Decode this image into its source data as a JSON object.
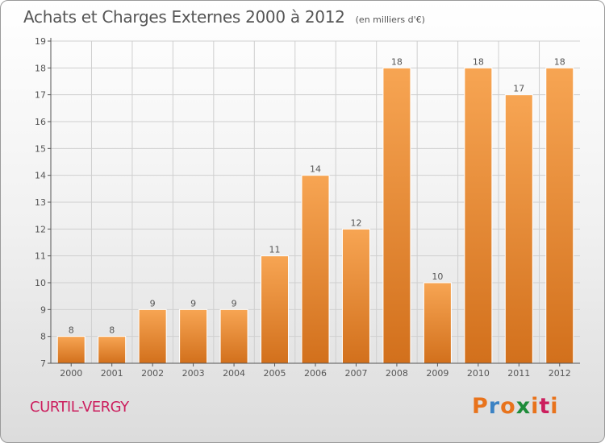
{
  "header": {
    "title": "Achats et Charges Externes 2000 à 2012",
    "unit": "(en milliers d'€)"
  },
  "footer": {
    "commune": "CURTIL-VERGY",
    "logo_text": "Proxiti",
    "logo_colors": [
      "#e8731c",
      "#3b82c4",
      "#e8731c",
      "#1e8c3a",
      "#e8731c",
      "#cc1f5e",
      "#e8731c"
    ]
  },
  "colors": {
    "bar_light": "#f7a553",
    "bar_dark": "#d2701c",
    "grid": "#cfcfcf",
    "axis": "#555555"
  },
  "chart_data": {
    "type": "bar",
    "title": "Achats et Charges Externes 2000 à 2012",
    "subtitle": "(en milliers d'€)",
    "categories": [
      "2000",
      "2001",
      "2002",
      "2003",
      "2004",
      "2005",
      "2006",
      "2007",
      "2008",
      "2009",
      "2010",
      "2011",
      "2012"
    ],
    "values": [
      8,
      8,
      9,
      9,
      9,
      11,
      14,
      12,
      18,
      10,
      18,
      17,
      18
    ],
    "ylim": [
      7,
      19
    ],
    "yticks": [
      7,
      8,
      9,
      10,
      11,
      12,
      13,
      14,
      15,
      16,
      17,
      18,
      19
    ],
    "grid": true,
    "data_labels": true
  }
}
